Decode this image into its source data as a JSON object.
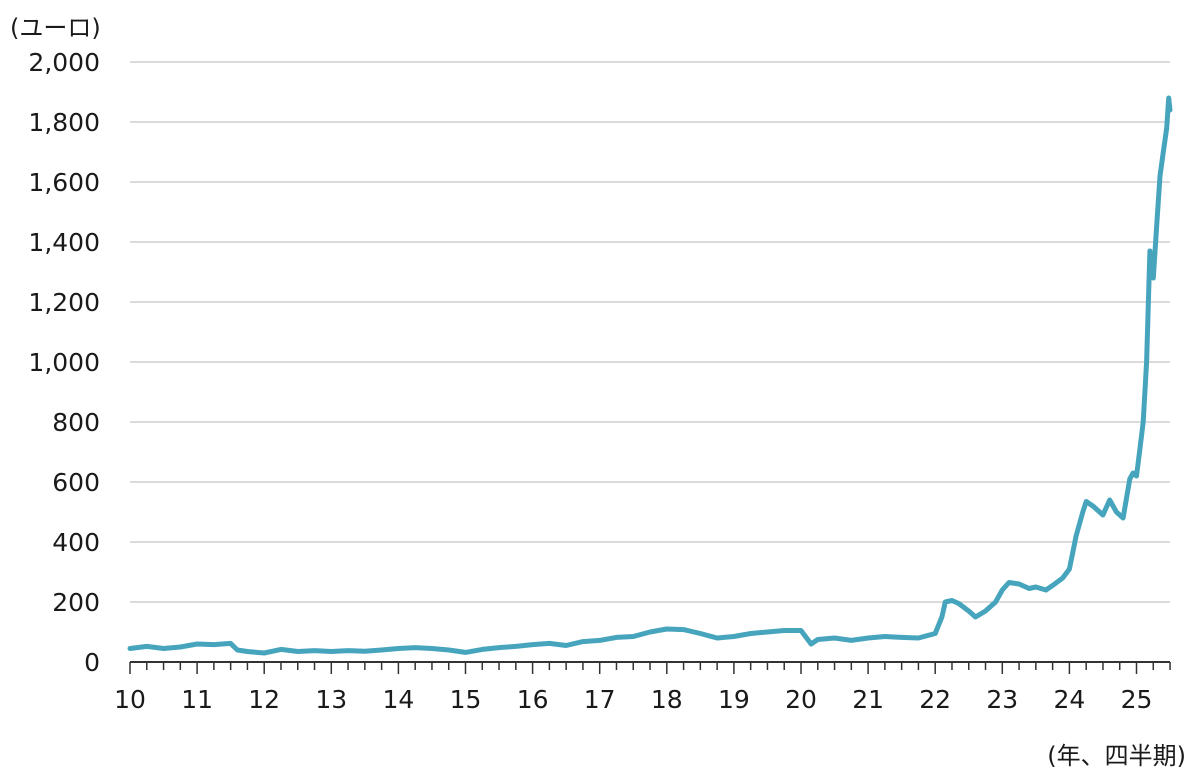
{
  "chart_data": {
    "type": "line",
    "ylabel": "(ユーロ)",
    "xlabel": "(年、四半期)",
    "ylim": [
      0,
      2000
    ],
    "yticks": [
      0,
      200,
      400,
      600,
      800,
      1000,
      1200,
      1400,
      1600,
      1800,
      2000
    ],
    "ytick_labels": [
      "0",
      "200",
      "400",
      "600",
      "800",
      "1,000",
      "1,200",
      "1,400",
      "1,600",
      "1,800",
      "2,000"
    ],
    "xlim": [
      10,
      25.6
    ],
    "xticks": [
      10,
      11,
      12,
      13,
      14,
      15,
      16,
      17,
      18,
      19,
      20,
      21,
      22,
      23,
      24,
      25
    ],
    "xtick_labels": [
      "10",
      "11",
      "12",
      "13",
      "14",
      "15",
      "16",
      "17",
      "18",
      "19",
      "20",
      "21",
      "22",
      "23",
      "24",
      "25"
    ],
    "grid": true,
    "line_color": "#46a5bd",
    "series": [
      {
        "x": [
          10.0,
          10.25,
          10.5,
          10.75,
          11.0,
          11.25,
          11.5,
          11.6,
          11.75,
          12.0,
          12.25,
          12.5,
          12.75,
          13.0,
          13.25,
          13.5,
          13.75,
          14.0,
          14.25,
          14.5,
          14.75,
          15.0,
          15.25,
          15.5,
          15.75,
          16.0,
          16.25,
          16.5,
          16.75,
          17.0,
          17.25,
          17.5,
          17.75,
          18.0,
          18.25,
          18.5,
          18.75,
          19.0,
          19.25,
          19.5,
          19.75,
          20.0,
          20.15,
          20.25,
          20.5,
          20.75,
          21.0,
          21.25,
          21.5,
          21.75,
          22.0,
          22.1,
          22.15,
          22.25,
          22.35,
          22.5,
          22.6,
          22.75,
          22.9,
          23.0,
          23.1,
          23.25,
          23.4,
          23.5,
          23.65,
          23.75,
          23.9,
          24.0,
          24.1,
          24.2,
          24.25,
          24.35,
          24.45,
          24.5,
          24.6,
          24.7,
          24.8,
          24.9,
          24.95,
          25.0,
          25.05,
          25.1,
          25.15,
          25.2,
          25.25,
          25.3,
          25.35,
          25.4,
          25.45,
          25.48,
          25.5
        ],
        "values": [
          45,
          52,
          45,
          50,
          60,
          58,
          62,
          40,
          35,
          30,
          42,
          35,
          38,
          35,
          38,
          36,
          40,
          45,
          48,
          45,
          40,
          32,
          42,
          48,
          52,
          58,
          62,
          55,
          68,
          72,
          82,
          85,
          100,
          110,
          108,
          95,
          80,
          85,
          95,
          100,
          105,
          105,
          60,
          75,
          80,
          72,
          80,
          85,
          82,
          80,
          95,
          150,
          200,
          205,
          195,
          170,
          150,
          170,
          200,
          240,
          265,
          260,
          245,
          250,
          240,
          255,
          280,
          310,
          420,
          500,
          535,
          520,
          500,
          490,
          540,
          500,
          480,
          610,
          630,
          620,
          710,
          800,
          1000,
          1370,
          1280,
          1450,
          1620,
          1700,
          1780,
          1880,
          1840
        ]
      }
    ]
  }
}
